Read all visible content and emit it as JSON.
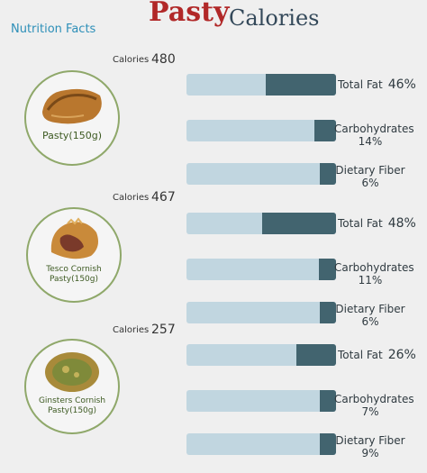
{
  "header": {
    "title_main": "Pasty",
    "title_sub": "Calories",
    "nutrition_facts": "Nutrition Facts"
  },
  "colors": {
    "title_red": "#b12828",
    "bar_track": "#c1d6e0",
    "bar_fill": "#42646f",
    "circle_border": "#8fa86a"
  },
  "chart_data": [
    {
      "type": "bar",
      "item": "Pasty(150g)",
      "calories_label": "Calories",
      "calories": "480",
      "categories": [
        "Total Fat",
        "Carbohydrates",
        "Dietary Fiber"
      ],
      "values": [
        46,
        14,
        6
      ],
      "value_labels": [
        "46%",
        "14%",
        "6%"
      ],
      "unit": "%"
    },
    {
      "type": "bar",
      "item": "Tesco Cornish Pasty(150g)",
      "calories_label": "Calories",
      "calories": "467",
      "categories": [
        "Total Fat",
        "Carbohydrates",
        "Dietary Fiber"
      ],
      "values": [
        48,
        11,
        6
      ],
      "value_labels": [
        "48%",
        "11%",
        "6%"
      ],
      "unit": "%"
    },
    {
      "type": "bar",
      "item": "Ginsters Cornish Pasty(150g)",
      "calories_label": "Calories",
      "calories": "257",
      "categories": [
        "Total Fat",
        "Carbohydrates",
        "Dietary Fiber"
      ],
      "values": [
        26,
        7,
        9
      ],
      "value_labels": [
        "26%",
        "7%",
        "9%"
      ],
      "unit": "%"
    }
  ]
}
